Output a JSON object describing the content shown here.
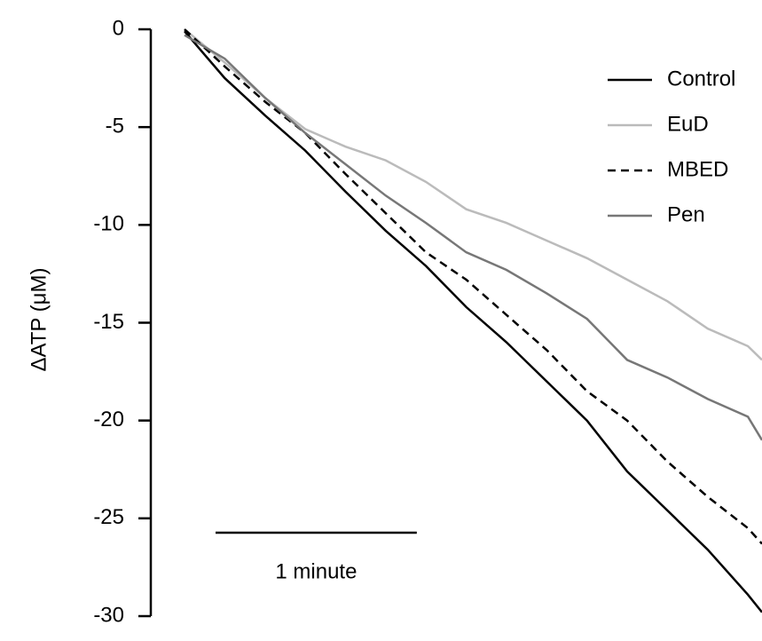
{
  "chart_data": {
    "type": "line",
    "y_label": "ΔATP (μM)",
    "x": [
      0,
      0.2,
      0.4,
      0.6,
      0.8,
      1.0,
      1.2,
      1.4,
      1.6,
      1.8,
      2.0,
      2.2,
      2.4,
      2.6,
      2.8,
      2.87
    ],
    "xlim": [
      0,
      2.87
    ],
    "ylim": [
      -30,
      0
    ],
    "yticks": [
      0,
      -5,
      -10,
      -15,
      -20,
      -25,
      -30
    ],
    "scale_bar": {
      "label": "1 minute",
      "length": 1
    },
    "series": [
      {
        "name": "Control",
        "color": "#000000",
        "dashed": false,
        "values": [
          -0.1,
          -2.5,
          -4.4,
          -6.2,
          -8.3,
          -10.3,
          -12.1,
          -14.2,
          -16,
          -18,
          -20,
          -22.6,
          -24.6,
          -26.6,
          -28.9,
          -29.8
        ]
      },
      {
        "name": "EuD",
        "color": "#bbbbbb",
        "dashed": false,
        "values": [
          0,
          -1.7,
          -3.5,
          -5.1,
          -6,
          -6.7,
          -7.8,
          -9.2,
          -9.9,
          -10.8,
          -11.7,
          -12.8,
          -13.9,
          -15.3,
          -16.2,
          -16.9
        ]
      },
      {
        "name": "MBED",
        "color": "#000000",
        "dashed": true,
        "values": [
          0,
          -1.9,
          -3.7,
          -5.3,
          -7.4,
          -9.4,
          -11.4,
          -12.8,
          -14.6,
          -16.4,
          -18.5,
          -20,
          -22.1,
          -23.9,
          -25.5,
          -26.3
        ]
      },
      {
        "name": "Pen",
        "color": "#777777",
        "dashed": false,
        "values": [
          -0.3,
          -1.5,
          -3.5,
          -5.3,
          -6.9,
          -8.5,
          -9.9,
          -11.4,
          -12.3,
          -13.5,
          -14.8,
          -16.9,
          -17.8,
          -18.9,
          -19.8,
          -21
        ]
      }
    ]
  }
}
